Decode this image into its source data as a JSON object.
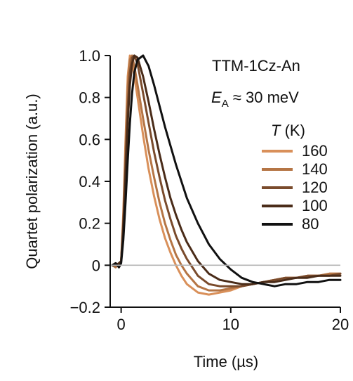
{
  "chart_data": {
    "type": "line",
    "title": "",
    "xlabel": "Time (µs)",
    "ylabel": "Quartet polarization (a.u.)",
    "xlim": [
      -1,
      20
    ],
    "ylim": [
      -0.2,
      1.0
    ],
    "xticks": [
      0,
      10,
      20
    ],
    "xtick_labels": [
      "0",
      "10",
      "20"
    ],
    "yticks": [
      -0.2,
      0,
      0.2,
      0.4,
      0.6,
      0.8,
      1.0
    ],
    "ytick_labels": [
      "−0.2",
      "0",
      "0.2",
      "0.4",
      "0.6",
      "0.8",
      "1.0"
    ],
    "grid": false,
    "zero_line": true,
    "annotations": {
      "compound": "TTM-1Cz-An",
      "ea_symbol": "E",
      "ea_subscript": "A",
      "ea_rest": " ≈ 30 meV"
    },
    "legend": {
      "title_symbol": "T",
      "title_unit": " (K)",
      "position": "right"
    },
    "series": [
      {
        "name": "160",
        "color": "#d9905a",
        "x": [
          -0.8,
          -0.5,
          -0.2,
          0.0,
          0.2,
          0.4,
          0.6,
          0.8,
          1.0,
          1.2,
          1.5,
          2.0,
          2.5,
          3.0,
          3.5,
          4.0,
          4.5,
          5.0,
          5.5,
          6.0,
          7.0,
          8.0,
          9.0,
          10.0,
          11.0,
          12.0,
          13.0,
          14.0,
          15.0,
          16.0,
          17.0,
          18.0,
          19.0,
          20.0
        ],
        "y": [
          0.0,
          0.01,
          -0.01,
          0.02,
          0.25,
          0.6,
          0.9,
          1.0,
          0.97,
          0.9,
          0.8,
          0.62,
          0.46,
          0.33,
          0.22,
          0.13,
          0.06,
          0.0,
          -0.05,
          -0.09,
          -0.13,
          -0.14,
          -0.13,
          -0.12,
          -0.1,
          -0.09,
          -0.08,
          -0.07,
          -0.06,
          -0.06,
          -0.05,
          -0.05,
          -0.04,
          -0.04
        ]
      },
      {
        "name": "140",
        "color": "#b57545",
        "x": [
          -0.8,
          -0.5,
          -0.2,
          0.0,
          0.2,
          0.4,
          0.6,
          0.8,
          1.0,
          1.2,
          1.5,
          2.0,
          2.5,
          3.0,
          3.5,
          4.0,
          4.5,
          5.0,
          5.5,
          6.0,
          7.0,
          8.0,
          9.0,
          10.0,
          11.0,
          12.0,
          13.0,
          14.0,
          15.0,
          16.0,
          17.0,
          18.0,
          19.0,
          20.0
        ],
        "y": [
          0.0,
          -0.01,
          0.01,
          0.02,
          0.22,
          0.55,
          0.85,
          0.98,
          1.0,
          0.95,
          0.86,
          0.7,
          0.55,
          0.42,
          0.3,
          0.2,
          0.12,
          0.05,
          0.0,
          -0.04,
          -0.1,
          -0.12,
          -0.12,
          -0.11,
          -0.1,
          -0.09,
          -0.08,
          -0.07,
          -0.06,
          -0.06,
          -0.05,
          -0.05,
          -0.04,
          -0.04
        ]
      },
      {
        "name": "120",
        "color": "#7a4b2c",
        "x": [
          -0.8,
          -0.5,
          -0.2,
          0.0,
          0.2,
          0.4,
          0.6,
          0.8,
          1.0,
          1.2,
          1.5,
          2.0,
          2.5,
          3.0,
          3.5,
          4.0,
          4.5,
          5.0,
          5.5,
          6.0,
          7.0,
          8.0,
          9.0,
          10.0,
          11.0,
          12.0,
          13.0,
          14.0,
          15.0,
          16.0,
          17.0,
          18.0,
          19.0,
          20.0
        ],
        "y": [
          0.0,
          0.01,
          0.0,
          0.02,
          0.2,
          0.48,
          0.75,
          0.92,
          0.99,
          1.0,
          0.96,
          0.82,
          0.68,
          0.54,
          0.42,
          0.31,
          0.22,
          0.14,
          0.08,
          0.03,
          -0.05,
          -0.09,
          -0.1,
          -0.1,
          -0.1,
          -0.09,
          -0.08,
          -0.07,
          -0.06,
          -0.06,
          -0.05,
          -0.05,
          -0.05,
          -0.04
        ]
      },
      {
        "name": "100",
        "color": "#4a2c19",
        "x": [
          -0.8,
          -0.5,
          -0.2,
          0.0,
          0.2,
          0.4,
          0.6,
          0.8,
          1.0,
          1.2,
          1.5,
          2.0,
          2.5,
          3.0,
          3.5,
          4.0,
          4.5,
          5.0,
          5.5,
          6.0,
          7.0,
          8.0,
          9.0,
          10.0,
          11.0,
          12.0,
          13.0,
          14.0,
          15.0,
          16.0,
          17.0,
          18.0,
          19.0,
          20.0
        ],
        "y": [
          0.0,
          0.0,
          0.01,
          0.02,
          0.18,
          0.42,
          0.68,
          0.86,
          0.96,
          1.0,
          0.99,
          0.9,
          0.78,
          0.65,
          0.53,
          0.42,
          0.32,
          0.24,
          0.17,
          0.11,
          0.02,
          -0.04,
          -0.07,
          -0.08,
          -0.09,
          -0.09,
          -0.08,
          -0.08,
          -0.07,
          -0.06,
          -0.06,
          -0.05,
          -0.05,
          -0.05
        ]
      },
      {
        "name": "80",
        "color": "#111111",
        "x": [
          -0.8,
          -0.5,
          -0.2,
          0.0,
          0.2,
          0.4,
          0.6,
          0.8,
          1.0,
          1.2,
          1.5,
          2.0,
          2.5,
          3.0,
          3.5,
          4.0,
          4.5,
          5.0,
          5.5,
          6.0,
          7.0,
          8.0,
          9.0,
          10.0,
          11.0,
          12.0,
          13.0,
          14.0,
          15.0,
          16.0,
          17.0,
          18.0,
          19.0,
          20.0
        ],
        "y": [
          0.0,
          0.01,
          -0.01,
          0.01,
          0.12,
          0.3,
          0.5,
          0.68,
          0.82,
          0.92,
          0.98,
          1.0,
          0.95,
          0.86,
          0.76,
          0.66,
          0.57,
          0.48,
          0.4,
          0.32,
          0.2,
          0.1,
          0.03,
          -0.02,
          -0.06,
          -0.08,
          -0.09,
          -0.1,
          -0.09,
          -0.09,
          -0.08,
          -0.08,
          -0.07,
          -0.07
        ]
      }
    ]
  }
}
